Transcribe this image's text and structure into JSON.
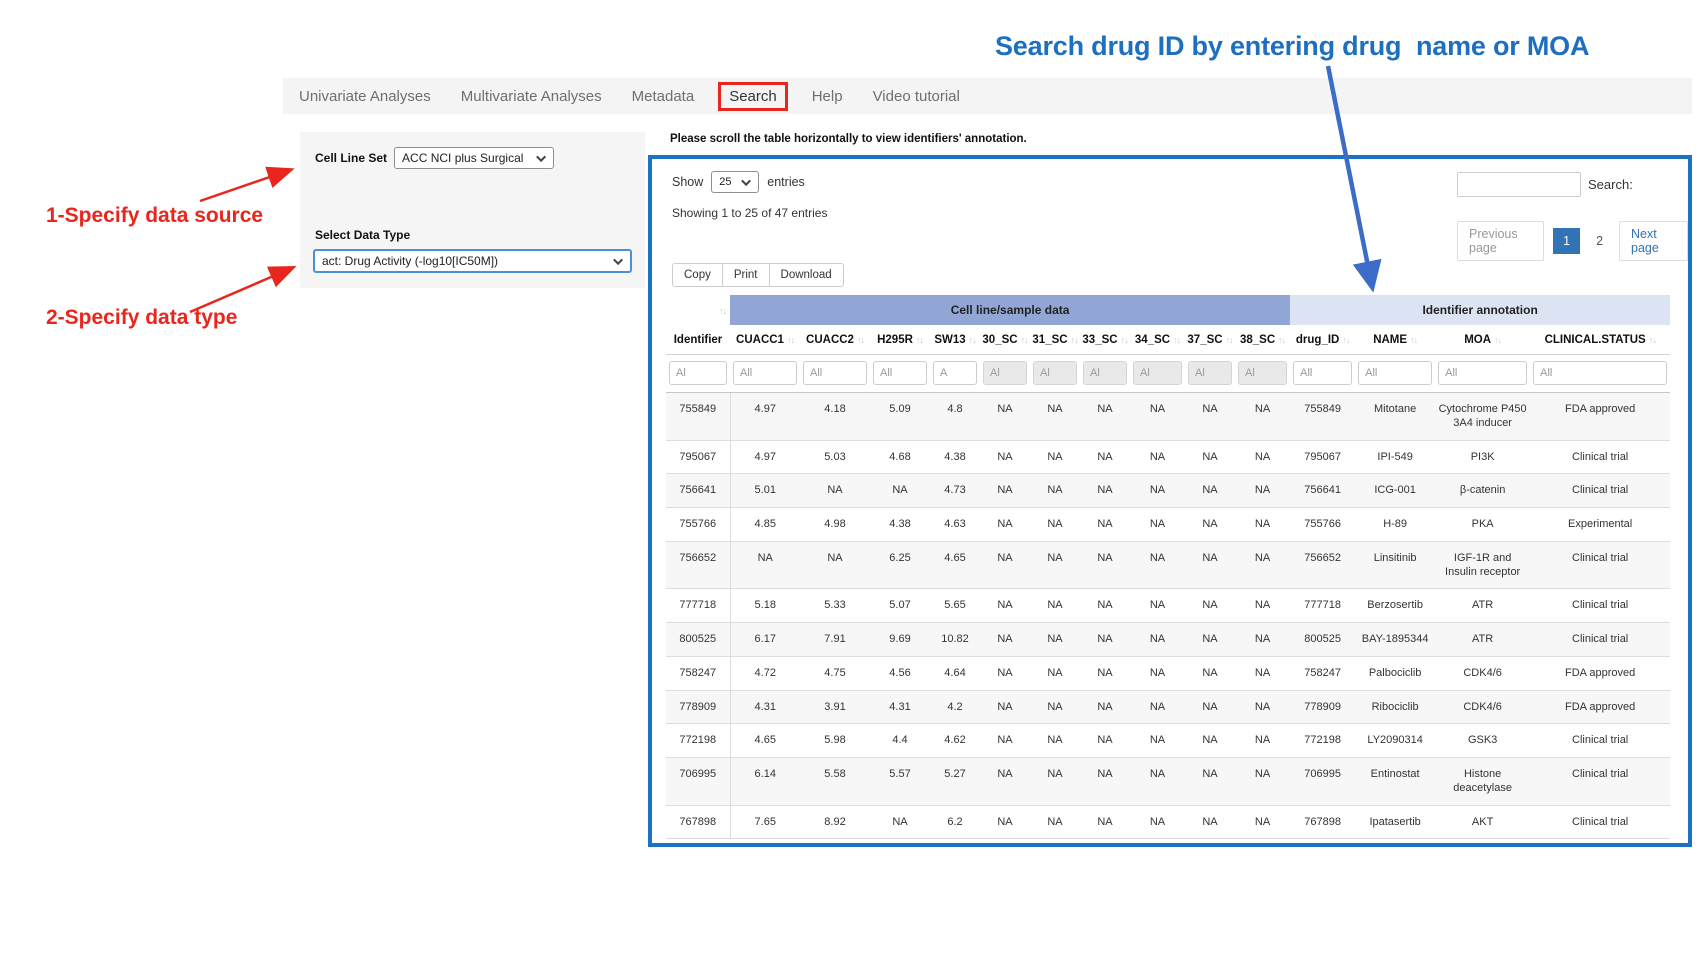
{
  "annotations": {
    "step1": "1-Specify data source",
    "step2": "2-Specify data type",
    "search_tip": "Search drug ID by entering drug  name or MOA",
    "red_color": "#e8261d",
    "blue_text_color": "#1e6fc0",
    "blue_arrow_color": "#3a6cc8"
  },
  "nav": {
    "items": [
      "Univariate Analyses",
      "Multivariate Analyses",
      "Metadata",
      "Search",
      "Help",
      "Video tutorial"
    ],
    "active_item": "Search"
  },
  "sidebar": {
    "cell_line_set_label": "Cell Line Set",
    "cell_line_set_value": "ACC NCI plus Surgical",
    "data_type_label": "Select Data Type",
    "data_type_value": "act: Drug Activity (-log10[IC50M])"
  },
  "panel": {
    "border_color": "#1a73c5",
    "scroll_note": "Please scroll the table horizontally to view identifiers' annotation.",
    "show_label": "Show",
    "page_length": "25",
    "entries_label": "entries",
    "showing_text": "Showing 1 to 25 of 47 entries",
    "search_label": "Search:",
    "search_value": "",
    "buttons": [
      "Copy",
      "Print",
      "Download"
    ],
    "pagination": {
      "prev": "Previous page",
      "page1": "1",
      "page2": "2",
      "next": "Next page",
      "current": "1"
    },
    "table": {
      "group_headers": [
        {
          "label": "",
          "span": 1,
          "style": "plain"
        },
        {
          "label": "Cell line/sample data",
          "span": 10,
          "style": "cellline",
          "color": "#91a6d4"
        },
        {
          "label": "Identifier annotation",
          "span": 4,
          "style": "annot",
          "color": "#dce3f3"
        }
      ],
      "columns": [
        "Identifier",
        "CUACC1",
        "CUACC2",
        "H295R",
        "SW13",
        "30_SC",
        "31_SC",
        "33_SC",
        "34_SC",
        "37_SC",
        "38_SC",
        "drug_ID",
        "NAME",
        "MOA",
        "CLINICAL.STATUS"
      ],
      "filters": [
        {
          "text": "Al",
          "gray": false
        },
        {
          "text": "All",
          "gray": false
        },
        {
          "text": "All",
          "gray": false
        },
        {
          "text": "All",
          "gray": false
        },
        {
          "text": "A",
          "gray": false
        },
        {
          "text": "Al",
          "gray": true
        },
        {
          "text": "Al",
          "gray": true
        },
        {
          "text": "Al",
          "gray": true
        },
        {
          "text": "Al",
          "gray": true
        },
        {
          "text": "Al",
          "gray": true
        },
        {
          "text": "Al",
          "gray": true
        },
        {
          "text": "All",
          "gray": false
        },
        {
          "text": "All",
          "gray": false
        },
        {
          "text": "All",
          "gray": false
        },
        {
          "text": "All",
          "gray": false
        }
      ],
      "rows": [
        [
          "755849",
          "4.97",
          "4.18",
          "5.09",
          "4.8",
          "NA",
          "NA",
          "NA",
          "NA",
          "NA",
          "NA",
          "755849",
          "Mitotane",
          "Cytochrome P450 3A4 inducer",
          "FDA approved"
        ],
        [
          "795067",
          "4.97",
          "5.03",
          "4.68",
          "4.38",
          "NA",
          "NA",
          "NA",
          "NA",
          "NA",
          "NA",
          "795067",
          "IPI-549",
          "PI3K",
          "Clinical trial"
        ],
        [
          "756641",
          "5.01",
          "NA",
          "NA",
          "4.73",
          "NA",
          "NA",
          "NA",
          "NA",
          "NA",
          "NA",
          "756641",
          "ICG-001",
          "β-catenin",
          "Clinical trial"
        ],
        [
          "755766",
          "4.85",
          "4.98",
          "4.38",
          "4.63",
          "NA",
          "NA",
          "NA",
          "NA",
          "NA",
          "NA",
          "755766",
          "H-89",
          "PKA",
          "Experimental"
        ],
        [
          "756652",
          "NA",
          "NA",
          "6.25",
          "4.65",
          "NA",
          "NA",
          "NA",
          "NA",
          "NA",
          "NA",
          "756652",
          "Linsitinib",
          "IGF-1R and Insulin receptor",
          "Clinical trial"
        ],
        [
          "777718",
          "5.18",
          "5.33",
          "5.07",
          "5.65",
          "NA",
          "NA",
          "NA",
          "NA",
          "NA",
          "NA",
          "777718",
          "Berzosertib",
          "ATR",
          "Clinical trial"
        ],
        [
          "800525",
          "6.17",
          "7.91",
          "9.69",
          "10.82",
          "NA",
          "NA",
          "NA",
          "NA",
          "NA",
          "NA",
          "800525",
          "BAY-1895344",
          "ATR",
          "Clinical trial"
        ],
        [
          "758247",
          "4.72",
          "4.75",
          "4.56",
          "4.64",
          "NA",
          "NA",
          "NA",
          "NA",
          "NA",
          "NA",
          "758247",
          "Palbociclib",
          "CDK4/6",
          "FDA approved"
        ],
        [
          "778909",
          "4.31",
          "3.91",
          "4.31",
          "4.2",
          "NA",
          "NA",
          "NA",
          "NA",
          "NA",
          "NA",
          "778909",
          "Ribociclib",
          "CDK4/6",
          "FDA approved"
        ],
        [
          "772198",
          "4.65",
          "5.98",
          "4.4",
          "4.62",
          "NA",
          "NA",
          "NA",
          "NA",
          "NA",
          "NA",
          "772198",
          "LY2090314",
          "GSK3",
          "Clinical trial"
        ],
        [
          "706995",
          "6.14",
          "5.58",
          "5.57",
          "5.27",
          "NA",
          "NA",
          "NA",
          "NA",
          "NA",
          "NA",
          "706995",
          "Entinostat",
          "Histone deacetylase",
          "Clinical trial"
        ],
        [
          "767898",
          "7.65",
          "8.92",
          "NA",
          "6.2",
          "NA",
          "NA",
          "NA",
          "NA",
          "NA",
          "NA",
          "767898",
          "Ipatasertib",
          "AKT",
          "Clinical trial"
        ]
      ]
    }
  }
}
